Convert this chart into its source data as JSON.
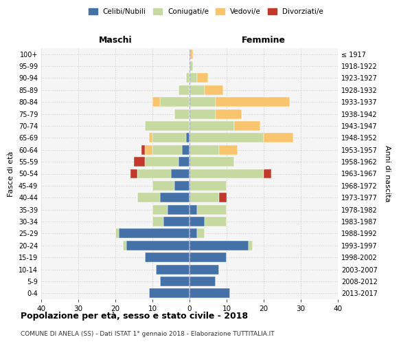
{
  "age_groups": [
    "0-4",
    "5-9",
    "10-14",
    "15-19",
    "20-24",
    "25-29",
    "30-34",
    "35-39",
    "40-44",
    "45-49",
    "50-54",
    "55-59",
    "60-64",
    "65-69",
    "70-74",
    "75-79",
    "80-84",
    "85-89",
    "90-94",
    "95-99",
    "100+"
  ],
  "birth_years": [
    "2013-2017",
    "2008-2012",
    "2003-2007",
    "1998-2002",
    "1993-1997",
    "1988-1992",
    "1983-1987",
    "1978-1982",
    "1973-1977",
    "1968-1972",
    "1963-1967",
    "1958-1962",
    "1953-1957",
    "1948-1952",
    "1943-1947",
    "1938-1942",
    "1933-1937",
    "1928-1932",
    "1923-1927",
    "1918-1922",
    "≤ 1917"
  ],
  "male": {
    "celibi": [
      11,
      8,
      9,
      12,
      17,
      19,
      7,
      6,
      8,
      4,
      5,
      3,
      2,
      1,
      0,
      0,
      0,
      0,
      0,
      0,
      0
    ],
    "coniugati": [
      0,
      0,
      0,
      0,
      1,
      1,
      3,
      4,
      6,
      6,
      9,
      9,
      8,
      9,
      12,
      4,
      8,
      3,
      1,
      0,
      0
    ],
    "vedovi": [
      0,
      0,
      0,
      0,
      0,
      0,
      0,
      0,
      0,
      0,
      0,
      0,
      2,
      1,
      0,
      0,
      2,
      0,
      0,
      0,
      0
    ],
    "divorziati": [
      0,
      0,
      0,
      0,
      0,
      0,
      0,
      0,
      0,
      0,
      2,
      3,
      1,
      0,
      0,
      0,
      0,
      0,
      0,
      0,
      0
    ]
  },
  "female": {
    "nubili": [
      11,
      7,
      8,
      10,
      16,
      2,
      4,
      2,
      0,
      0,
      0,
      0,
      0,
      0,
      0,
      0,
      0,
      0,
      0,
      0,
      0
    ],
    "coniugate": [
      0,
      0,
      0,
      0,
      1,
      2,
      6,
      8,
      8,
      10,
      20,
      12,
      8,
      20,
      12,
      7,
      7,
      4,
      2,
      1,
      0
    ],
    "vedove": [
      0,
      0,
      0,
      0,
      0,
      0,
      0,
      0,
      0,
      0,
      0,
      0,
      5,
      8,
      7,
      7,
      20,
      5,
      3,
      0,
      1
    ],
    "divorziate": [
      0,
      0,
      0,
      0,
      0,
      0,
      0,
      0,
      2,
      0,
      2,
      0,
      0,
      0,
      0,
      0,
      0,
      0,
      0,
      0,
      0
    ]
  },
  "colors": {
    "celibi": "#4472a8",
    "coniugati": "#c5d9a0",
    "vedovi": "#f8c46e",
    "divorziati": "#c0392b"
  },
  "xlim": 40,
  "title": "Popolazione per età, sesso e stato civile - 2018",
  "subtitle": "COMUNE DI ANELA (SS) - Dati ISTAT 1° gennaio 2018 - Elaborazione TUTTITALIA.IT",
  "ylabel_left": "Fasce di età",
  "ylabel_right": "Anni di nascita",
  "xlabel_left": "Maschi",
  "xlabel_right": "Femmine",
  "bg_color": "#f5f5f5",
  "grid_color": "#cccccc"
}
